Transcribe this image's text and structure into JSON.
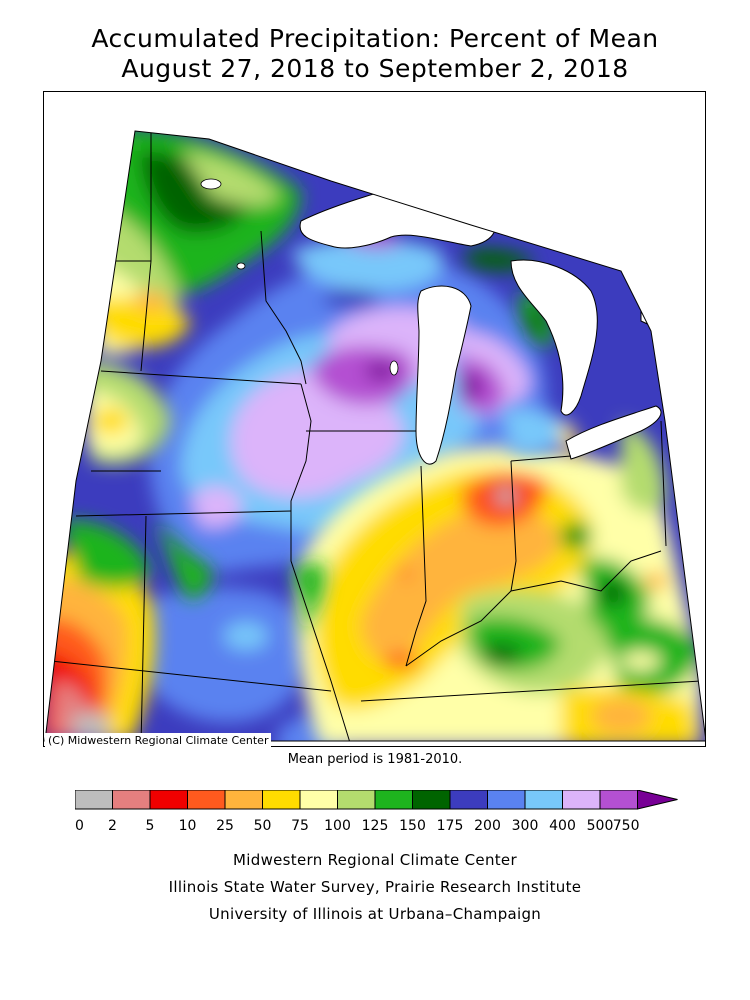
{
  "title": {
    "line1": "Accumulated Precipitation: Percent of Mean",
    "line2": "August 27, 2018 to September 2, 2018"
  },
  "map": {
    "copyright": "(C) Midwestern Regional Climate Center",
    "mean_period": "Mean period is 1981-2010.",
    "regions": [
      "Minnesota",
      "Iowa",
      "Missouri",
      "Wisconsin",
      "Illinois",
      "Michigan",
      "Indiana",
      "Ohio",
      "Kentucky"
    ],
    "highlights": [
      {
        "area": "central Wisconsin",
        "category": "500-750"
      },
      {
        "area": "western Michigan",
        "category": "500-750"
      },
      {
        "area": "northern Iowa / southern Minnesota",
        "category": "400-500"
      },
      {
        "area": "central Indiana / western Ohio",
        "category": "5-25"
      },
      {
        "area": "western Missouri",
        "category": "0-5"
      }
    ]
  },
  "legend": {
    "labels": [
      "0",
      "2",
      "5",
      "10",
      "25",
      "50",
      "75",
      "100",
      "125",
      "150",
      "175",
      "200",
      "300",
      "400",
      "500",
      "750"
    ],
    "colors": [
      "#bdbdbd",
      "#e57f7f",
      "#f00000",
      "#ff5a1e",
      "#ffb43c",
      "#ffdc00",
      "#ffffa8",
      "#b4dc6e",
      "#1eb41e",
      "#006400",
      "#3c3cbe",
      "#5a82f0",
      "#78c8fa",
      "#dcb4fa",
      "#b450d2",
      "#780096"
    ]
  },
  "credits": {
    "line1": "Midwestern Regional Climate Center",
    "line2": "Illinois State Water Survey, Prairie Research Institute",
    "line3": "University of Illinois at Urbana–Champaign"
  }
}
